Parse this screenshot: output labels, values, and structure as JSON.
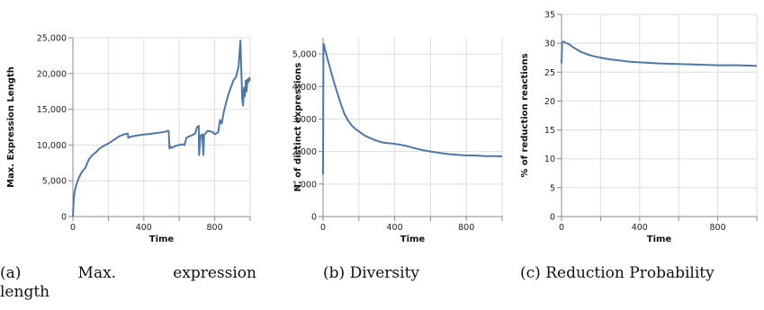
{
  "colors": {
    "line": "#4c78a8",
    "grid": "#dedede",
    "axis": "#888888"
  },
  "chart_data": [
    {
      "type": "line",
      "xlabel": "Time",
      "ylabel": "Max. Expression Length",
      "xlim": [
        0,
        1000
      ],
      "ylim": [
        0,
        25000
      ],
      "xticks": [
        0,
        200,
        400,
        600,
        800,
        1000
      ],
      "xtick_labels": [
        "0",
        "",
        "400",
        "",
        "800",
        ""
      ],
      "yticks": [
        0,
        5000,
        10000,
        15000,
        20000,
        25000
      ],
      "ytick_labels": [
        "0",
        "5,000",
        "10,000",
        "15,000",
        "20,000",
        "25,000"
      ],
      "grid": true,
      "series": [
        {
          "x": [
            0,
            5,
            10,
            20,
            35,
            50,
            70,
            90,
            110,
            130,
            150,
            175,
            200,
            230,
            260,
            290,
            310,
            312,
            330,
            380,
            450,
            510,
            540,
            545,
            550,
            560,
            580,
            600,
            620,
            630,
            640,
            655,
            675,
            690,
            700,
            705,
            710,
            712,
            720,
            730,
            736,
            740,
            760,
            790,
            800,
            820,
            830,
            840,
            850,
            870,
            890,
            905,
            920,
            935,
            945,
            952,
            955,
            960,
            965,
            970,
            975,
            980,
            985,
            990,
            995,
            1000
          ],
          "y": [
            0,
            2500,
            3500,
            4500,
            5500,
            6200,
            6800,
            8000,
            8600,
            9000,
            9500,
            9900,
            10200,
            10700,
            11200,
            11500,
            11600,
            11000,
            11200,
            11400,
            11600,
            11800,
            12000,
            9500,
            9800,
            9600,
            9900,
            10000,
            10100,
            10000,
            11000,
            11200,
            11400,
            11600,
            12500,
            12600,
            12700,
            8600,
            11300,
            11500,
            8600,
            11400,
            12000,
            11800,
            11500,
            11800,
            13500,
            13000,
            14500,
            16500,
            18000,
            19000,
            19500,
            21000,
            24600,
            19000,
            16500,
            15500,
            18000,
            16800,
            19000,
            17500,
            19200,
            18800,
            19400,
            19000
          ]
        }
      ]
    },
    {
      "type": "line",
      "xlabel": "Time",
      "ylabel": "N. of distinct expressions",
      "xlim": [
        0,
        1000
      ],
      "ylim": [
        0,
        5500
      ],
      "xticks": [
        0,
        200,
        400,
        600,
        800,
        1000
      ],
      "xtick_labels": [
        "0",
        "",
        "400",
        "",
        "800",
        ""
      ],
      "yticks": [
        0,
        1000,
        2000,
        3000,
        4000,
        5000
      ],
      "ytick_labels": [
        "0",
        "1,000",
        "2,000",
        "3,000",
        "4,000",
        "5,000"
      ],
      "grid": true,
      "series": [
        {
          "x": [
            0,
            2,
            5,
            10,
            20,
            30,
            40,
            50,
            60,
            80,
            100,
            120,
            140,
            160,
            180,
            200,
            230,
            260,
            300,
            340,
            380,
            420,
            460,
            500,
            550,
            600,
            650,
            700,
            750,
            800,
            850,
            900,
            950,
            1000
          ],
          "y": [
            1300,
            5300,
            5300,
            5150,
            4950,
            4750,
            4550,
            4350,
            4150,
            3800,
            3450,
            3150,
            2950,
            2800,
            2700,
            2620,
            2500,
            2420,
            2330,
            2270,
            2250,
            2220,
            2180,
            2120,
            2050,
            2000,
            1960,
            1920,
            1900,
            1880,
            1880,
            1860,
            1860,
            1850
          ]
        }
      ]
    },
    {
      "type": "line",
      "xlabel": "Time",
      "ylabel": "% of reduction reactions",
      "xlim": [
        0,
        1000
      ],
      "ylim": [
        0,
        35
      ],
      "xticks": [
        0,
        200,
        400,
        600,
        800,
        1000
      ],
      "xtick_labels": [
        "0",
        "",
        "400",
        "",
        "800",
        ""
      ],
      "yticks": [
        0,
        5,
        10,
        15,
        20,
        25,
        30,
        35
      ],
      "ytick_labels": [
        "0",
        "5",
        "10",
        "15",
        "20",
        "25",
        "30",
        "35"
      ],
      "grid": true,
      "series": [
        {
          "x": [
            0,
            3,
            10,
            20,
            40,
            60,
            80,
            100,
            130,
            160,
            200,
            250,
            300,
            350,
            400,
            450,
            500,
            600,
            700,
            800,
            900,
            1000
          ],
          "y": [
            26.5,
            30.2,
            30.3,
            30.1,
            29.8,
            29.3,
            28.9,
            28.5,
            28.1,
            27.8,
            27.5,
            27.2,
            27.0,
            26.8,
            26.7,
            26.6,
            26.5,
            26.4,
            26.3,
            26.2,
            26.2,
            26.1
          ]
        }
      ]
    }
  ],
  "captions": [
    {
      "tag": "(a)",
      "line1": "Max.",
      "line2": "expression",
      "line3": "length"
    },
    {
      "tag": "(b)",
      "text": "Diversity"
    },
    {
      "tag": "(c)",
      "text": "Reduction Probability"
    }
  ]
}
